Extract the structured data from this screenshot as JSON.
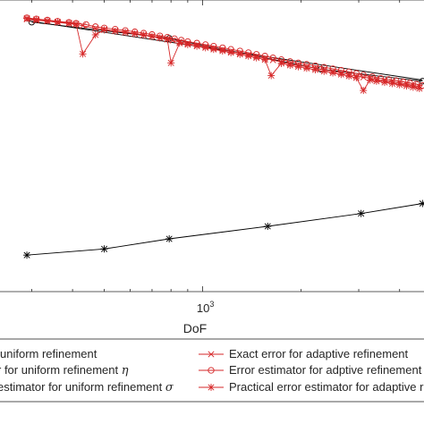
{
  "chart_data": {
    "type": "line",
    "xlabel": "DoF",
    "xscale": "log",
    "yscale": "log",
    "x_tick_labels": [
      {
        "base": "10",
        "exp": "3"
      }
    ],
    "grid": false,
    "legend_placement": "bottom-outside",
    "series": [
      {
        "name": "Exact error for adaptive refinement",
        "color": "#d62728",
        "marker": "x",
        "x": [
          290,
          310,
          335,
          360,
          390,
          410,
          430,
          470,
          500,
          540,
          580,
          620,
          660,
          700,
          740,
          780,
          810,
          850,
          900,
          960,
          1020,
          1080,
          1150,
          1220,
          1300,
          1380,
          1460,
          1550,
          1640,
          1740,
          1850,
          1960,
          2080,
          2210,
          2350,
          2500,
          2650,
          2800,
          2950,
          3100,
          3250,
          3400,
          3600,
          3800,
          4000,
          4200,
          4400,
          4600
        ],
        "y": [
          0.0305,
          0.0301,
          0.0298,
          0.0294,
          0.029,
          0.0287,
          0.0283,
          0.0275,
          0.0271,
          0.0267,
          0.0263,
          0.0259,
          0.0255,
          0.0251,
          0.0247,
          0.0243,
          0.0239,
          0.0235,
          0.0231,
          0.0227,
          0.0223,
          0.0219,
          0.0215,
          0.0211,
          0.0207,
          0.0203,
          0.0199,
          0.0195,
          0.0191,
          0.0187,
          0.0183,
          0.018,
          0.0177,
          0.0174,
          0.0171,
          0.0168,
          0.0165,
          0.0162,
          0.0159,
          0.0157,
          0.0155,
          0.0153,
          0.0151,
          0.0149,
          0.0147,
          0.0145,
          0.0143,
          0.0141
        ]
      },
      {
        "name": "Error estimator for adptive refinement",
        "color": "#d62728",
        "marker": "o",
        "x": [
          290,
          310,
          335,
          360,
          390,
          410,
          440,
          470,
          500,
          540,
          580,
          620,
          660,
          700,
          740,
          780,
          820,
          860,
          900,
          960,
          1020,
          1080,
          1150,
          1220,
          1300,
          1380,
          1460,
          1550,
          1640,
          1740,
          1850,
          1960,
          2080,
          2210,
          2350,
          2500,
          2650,
          2800,
          2950,
          3100,
          3300,
          3500,
          3700,
          3900,
          4100,
          4300,
          4500,
          4700
        ],
        "y": [
          0.031,
          0.0306,
          0.0302,
          0.0298,
          0.0294,
          0.0291,
          0.0287,
          0.028,
          0.0276,
          0.0272,
          0.0268,
          0.0264,
          0.026,
          0.0256,
          0.0252,
          0.0248,
          0.0244,
          0.024,
          0.0236,
          0.0232,
          0.0228,
          0.0224,
          0.022,
          0.0216,
          0.0212,
          0.0208,
          0.0204,
          0.02,
          0.0196,
          0.0192,
          0.0188,
          0.0185,
          0.0182,
          0.0179,
          0.0176,
          0.0173,
          0.017,
          0.0167,
          0.0164,
          0.0161,
          0.0158,
          0.0155,
          0.0153,
          0.0151,
          0.0149,
          0.0147,
          0.0145,
          0.0143
        ]
      },
      {
        "name": "Practical error estimator for adaptive refinement",
        "color": "#d62728",
        "marker": "*",
        "x": [
          290,
          310,
          335,
          360,
          390,
          410,
          430,
          470,
          500,
          540,
          580,
          620,
          660,
          700,
          740,
          780,
          800,
          850,
          900,
          960,
          1020,
          1080,
          1150,
          1220,
          1300,
          1380,
          1460,
          1550,
          1620,
          1740,
          1850,
          1960,
          2080,
          2210,
          2350,
          2500,
          2650,
          2800,
          2950,
          3100,
          3250,
          3400,
          3600,
          3800,
          4000,
          4200,
          4400,
          4600
        ],
        "y": [
          0.0308,
          0.0304,
          0.03,
          0.0296,
          0.0292,
          0.0289,
          0.0205,
          0.0255,
          0.027,
          0.0266,
          0.0262,
          0.0258,
          0.0254,
          0.025,
          0.0246,
          0.0242,
          0.0185,
          0.0232,
          0.0228,
          0.0224,
          0.022,
          0.0216,
          0.0212,
          0.0208,
          0.0204,
          0.02,
          0.0196,
          0.0192,
          0.016,
          0.0184,
          0.018,
          0.0177,
          0.0174,
          0.0171,
          0.0168,
          0.0165,
          0.0162,
          0.0159,
          0.0156,
          0.0135,
          0.0152,
          0.015,
          0.0148,
          0.0146,
          0.0144,
          0.0142,
          0.014,
          0.0138
        ]
      },
      {
        "name": "Exact error for uniform refinement",
        "name_visible": "uniform refinement",
        "color": "#000000",
        "marker": "o",
        "x": [
          300,
          790,
          2300,
          4700
        ],
        "y": [
          0.0295,
          0.0245,
          0.0172,
          0.015
        ]
      },
      {
        "name": "Error estimator for uniform refinement",
        "name_visible": "r for uniform refinement",
        "name_symbol": "η",
        "color": "#000000",
        "marker": "none",
        "x": [
          290,
          4700
        ],
        "y": [
          0.03,
          0.0152
        ]
      },
      {
        "name": "Practical error estimator for uniform refinement",
        "name_visible": "estimator for uniform refinement",
        "name_symbol": "σ",
        "color": "#000000",
        "marker": "*",
        "x": [
          290,
          500,
          790,
          1580,
          3050,
          4700
        ],
        "y": [
          0.00205,
          0.0022,
          0.00247,
          0.00285,
          0.0033,
          0.0037
        ]
      }
    ]
  }
}
